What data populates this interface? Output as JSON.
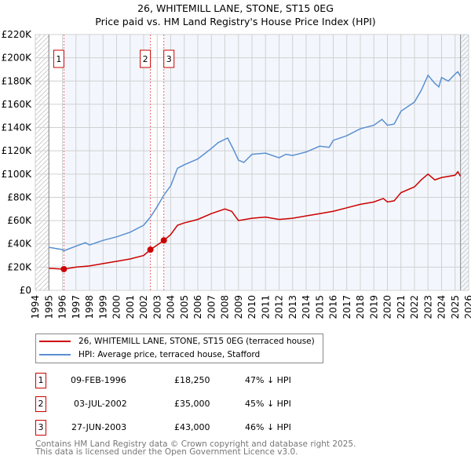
{
  "chart_data": {
    "type": "line",
    "title": "26, WHITEMILL LANE, STONE, ST15 0EG",
    "subtitle": "Price paid vs. HM Land Registry's House Price Index (HPI)",
    "xlim": [
      1994,
      2026
    ],
    "ylim": [
      0,
      220000
    ],
    "yticks": [
      "£0",
      "£20K",
      "£40K",
      "£60K",
      "£80K",
      "£100K",
      "£120K",
      "£140K",
      "£160K",
      "£180K",
      "£200K",
      "£220K"
    ],
    "xticks": [
      "1994",
      "1995",
      "1996",
      "1997",
      "1998",
      "1999",
      "2000",
      "2001",
      "2002",
      "2003",
      "2004",
      "2005",
      "2006",
      "2007",
      "2008",
      "2009",
      "2010",
      "2011",
      "2012",
      "2013",
      "2014",
      "2015",
      "2016",
      "2017",
      "2018",
      "2019",
      "2020",
      "2021",
      "2022",
      "2023",
      "2024",
      "2025",
      "2026"
    ],
    "series": [
      {
        "name": "26, WHITEMILL LANE, STONE, ST15 0EG (terraced house)",
        "color": "#cc0000",
        "x": [
          1995,
          1996.1,
          1997,
          1998,
          1999,
          2000,
          2001,
          2002,
          2002.5,
          2003,
          2003.5,
          2004,
          2004.5,
          2005,
          2006,
          2007,
          2008,
          2008.5,
          2009,
          2010,
          2011,
          2012,
          2013,
          2014,
          2015,
          2016,
          2017,
          2018,
          2019,
          2019.7,
          2020,
          2020.5,
          2021,
          2022,
          2022.5,
          2023,
          2023.5,
          2024,
          2025,
          2025.2,
          2025.4
        ],
        "y": [
          19,
          18.25,
          20,
          21,
          23,
          25,
          27,
          30,
          35,
          39,
          43,
          48,
          56,
          58,
          61,
          66,
          70,
          68,
          60,
          62,
          63,
          61,
          62,
          64,
          66,
          68,
          71,
          74,
          76,
          79,
          76,
          77,
          84,
          89,
          95,
          100,
          95,
          97,
          99,
          102,
          98
        ]
      },
      {
        "name": "HPI: Average price, terraced house, Stafford",
        "color": "#5b8fd0",
        "x": [
          1995,
          1996,
          1996.1,
          1997,
          1997.7,
          1998,
          1999,
          2000,
          2001,
          2002,
          2002.5,
          2003,
          2003.5,
          2004,
          2004.5,
          2005,
          2006,
          2007,
          2007.5,
          2008.2,
          2008.6,
          2009,
          2009.4,
          2010,
          2011,
          2012,
          2012.5,
          2013,
          2014,
          2015,
          2015.7,
          2016,
          2017,
          2018,
          2019,
          2019.6,
          2020,
          2020.5,
          2021,
          2022,
          2022.5,
          2023,
          2023.5,
          2023.8,
          2024,
          2024.5,
          2025,
          2025.2,
          2025.4
        ],
        "y": [
          37,
          35,
          34,
          38,
          41,
          39,
          43,
          46,
          50,
          56,
          63,
          72,
          82,
          90,
          105,
          108,
          113,
          122,
          127,
          131,
          122,
          112,
          110,
          117,
          118,
          114,
          117,
          116,
          119,
          124,
          123,
          129,
          133,
          139,
          142,
          147,
          142,
          143,
          154,
          162,
          172,
          185,
          178,
          175,
          183,
          180,
          186,
          188,
          184
        ]
      }
    ],
    "y_unit": "thousand GBP",
    "sales": [
      {
        "n": "1",
        "x": 1996.11,
        "y": 18.25,
        "date": "09-FEB-1996",
        "price": "£18,250",
        "hpi": "47% ↓ HPI"
      },
      {
        "n": "2",
        "x": 2002.5,
        "y": 35,
        "date": "03-JUL-2002",
        "price": "£35,000",
        "hpi": "45% ↓ HPI"
      },
      {
        "n": "3",
        "x": 2003.49,
        "y": 43,
        "date": "27-JUN-2003",
        "price": "£43,000",
        "hpi": "46% ↓ HPI"
      }
    ],
    "data_start": 1995,
    "data_end": 2025.4
  },
  "footer": [
    "Contains HM Land Registry data © Crown copyright and database right 2025.",
    "This data is licensed under the Open Government Licence v3.0."
  ]
}
